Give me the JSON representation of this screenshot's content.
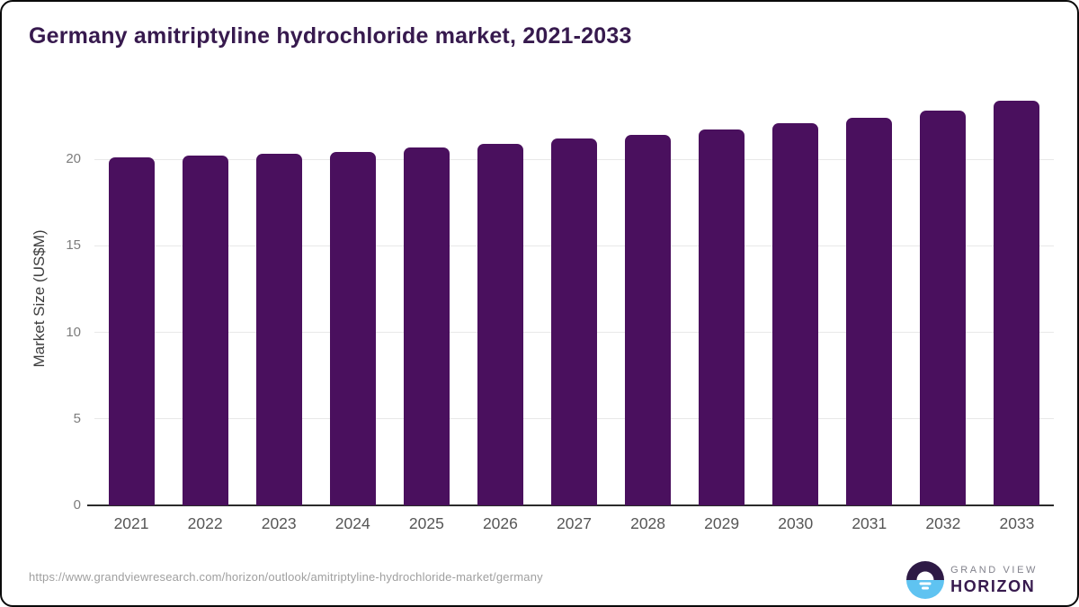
{
  "header": {
    "title": "Germany amitriptyline hydrochloride market, 2021-2033"
  },
  "chart_data": {
    "type": "bar",
    "title": "Germany amitriptyline hydrochloride market, 2021-2033",
    "categories": [
      "2021",
      "2022",
      "2023",
      "2024",
      "2025",
      "2026",
      "2027",
      "2028",
      "2029",
      "2030",
      "2031",
      "2032",
      "2033"
    ],
    "values": [
      20.1,
      20.2,
      20.3,
      20.4,
      20.7,
      20.9,
      21.2,
      21.4,
      21.7,
      22.1,
      22.4,
      22.8,
      23.4
    ],
    "xlabel": "",
    "ylabel": "Market Size (US$M)",
    "ylim": [
      0,
      23.9
    ],
    "yticks": [
      0,
      5,
      10,
      15,
      20
    ],
    "grid": true,
    "legend": false,
    "bar_color": "#4a105e",
    "gridline_color": "#e8e8e8",
    "axis_line_color": "#2b2b2b"
  },
  "footer": {
    "source_url": "https://www.grandviewresearch.com/horizon/outlook/amitriptyline-hydrochloride-market/germany",
    "logo": {
      "line1": "GRAND VIEW",
      "line2": "HORIZON",
      "circle_top_color": "#2e1a45",
      "circle_bottom_color": "#5fc3f1"
    }
  }
}
